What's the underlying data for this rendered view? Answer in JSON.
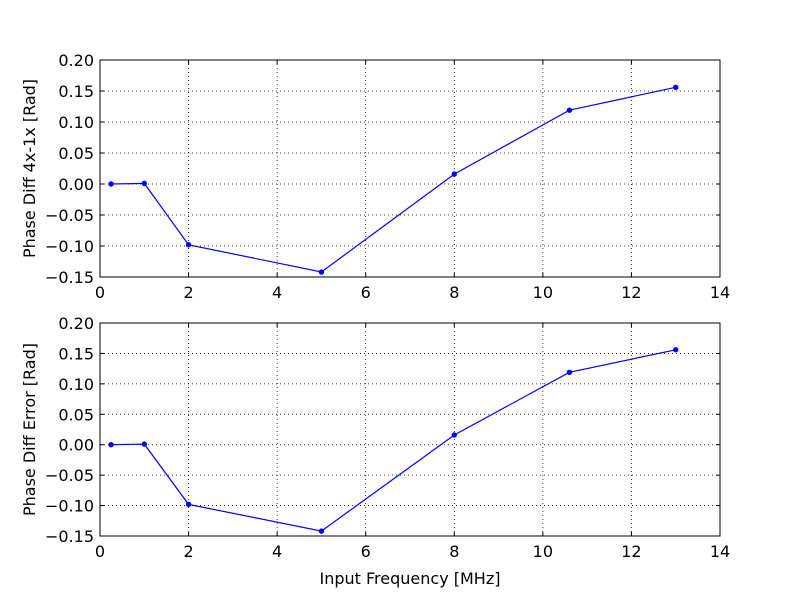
{
  "chart_data": [
    {
      "type": "line",
      "title": "",
      "xlabel": "",
      "ylabel": "Phase Diff 4x-1x [Rad]",
      "xlim": [
        0,
        14
      ],
      "ylim": [
        -0.15,
        0.2
      ],
      "x_ticks": [
        "0",
        "2",
        "4",
        "6",
        "8",
        "10",
        "12",
        "14"
      ],
      "y_ticks": [
        "−0.15",
        "−0.10",
        "−0.05",
        "0.00",
        "0.05",
        "0.10",
        "0.15",
        "0.20"
      ],
      "grid": true,
      "series": [
        {
          "x": [
            0.25,
            1.0,
            2.0,
            5.0,
            8.0,
            10.6,
            13.0
          ],
          "y": [
            0.0,
            0.001,
            -0.098,
            -0.142,
            0.016,
            0.119,
            0.156
          ],
          "color": "#0000ff",
          "marker": "dot"
        }
      ]
    },
    {
      "type": "line",
      "title": "",
      "xlabel": "Input Frequency [MHz]",
      "ylabel": "Phase Diff Error [Rad]",
      "xlim": [
        0,
        14
      ],
      "ylim": [
        -0.15,
        0.2
      ],
      "x_ticks": [
        "0",
        "2",
        "4",
        "6",
        "8",
        "10",
        "12",
        "14"
      ],
      "y_ticks": [
        "−0.15",
        "−0.10",
        "−0.05",
        "0.00",
        "0.05",
        "0.10",
        "0.15",
        "0.20"
      ],
      "grid": true,
      "series": [
        {
          "x": [
            0.25,
            1.0,
            2.0,
            5.0,
            8.0,
            10.6,
            13.0
          ],
          "y": [
            0.0,
            0.001,
            -0.098,
            -0.142,
            0.016,
            0.119,
            0.156
          ],
          "color": "#0000ff",
          "marker": "dot"
        }
      ]
    }
  ]
}
